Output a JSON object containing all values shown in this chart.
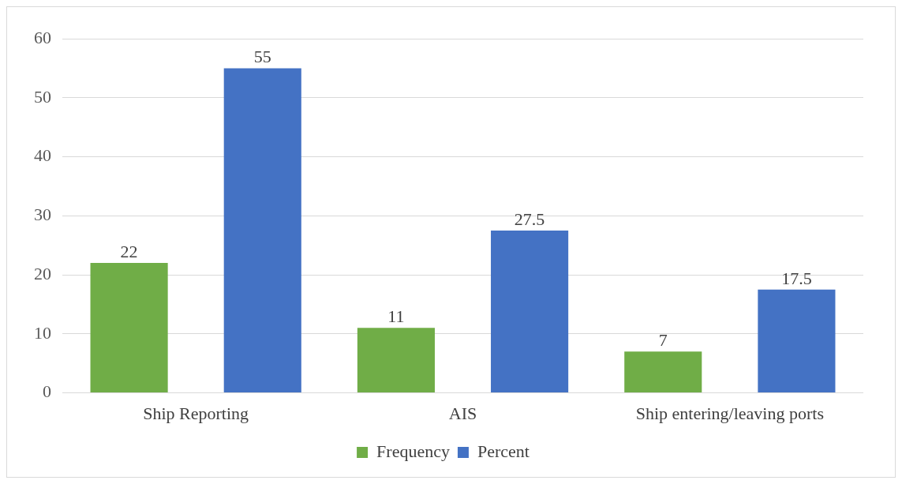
{
  "chart_data": {
    "type": "bar",
    "categories": [
      "Ship Reporting",
      "AIS",
      "Ship entering/leaving ports"
    ],
    "series": [
      {
        "name": "Frequency",
        "color": "#70ad47",
        "values": [
          22,
          11,
          7
        ]
      },
      {
        "name": "Percent",
        "color": "#4472c4",
        "values": [
          55,
          27.5,
          17.5
        ]
      }
    ],
    "ylim": [
      0,
      60
    ],
    "yticks": [
      0,
      10,
      20,
      30,
      40,
      50,
      60
    ],
    "grid": "y",
    "legend": "bottom",
    "data_labels": true
  }
}
